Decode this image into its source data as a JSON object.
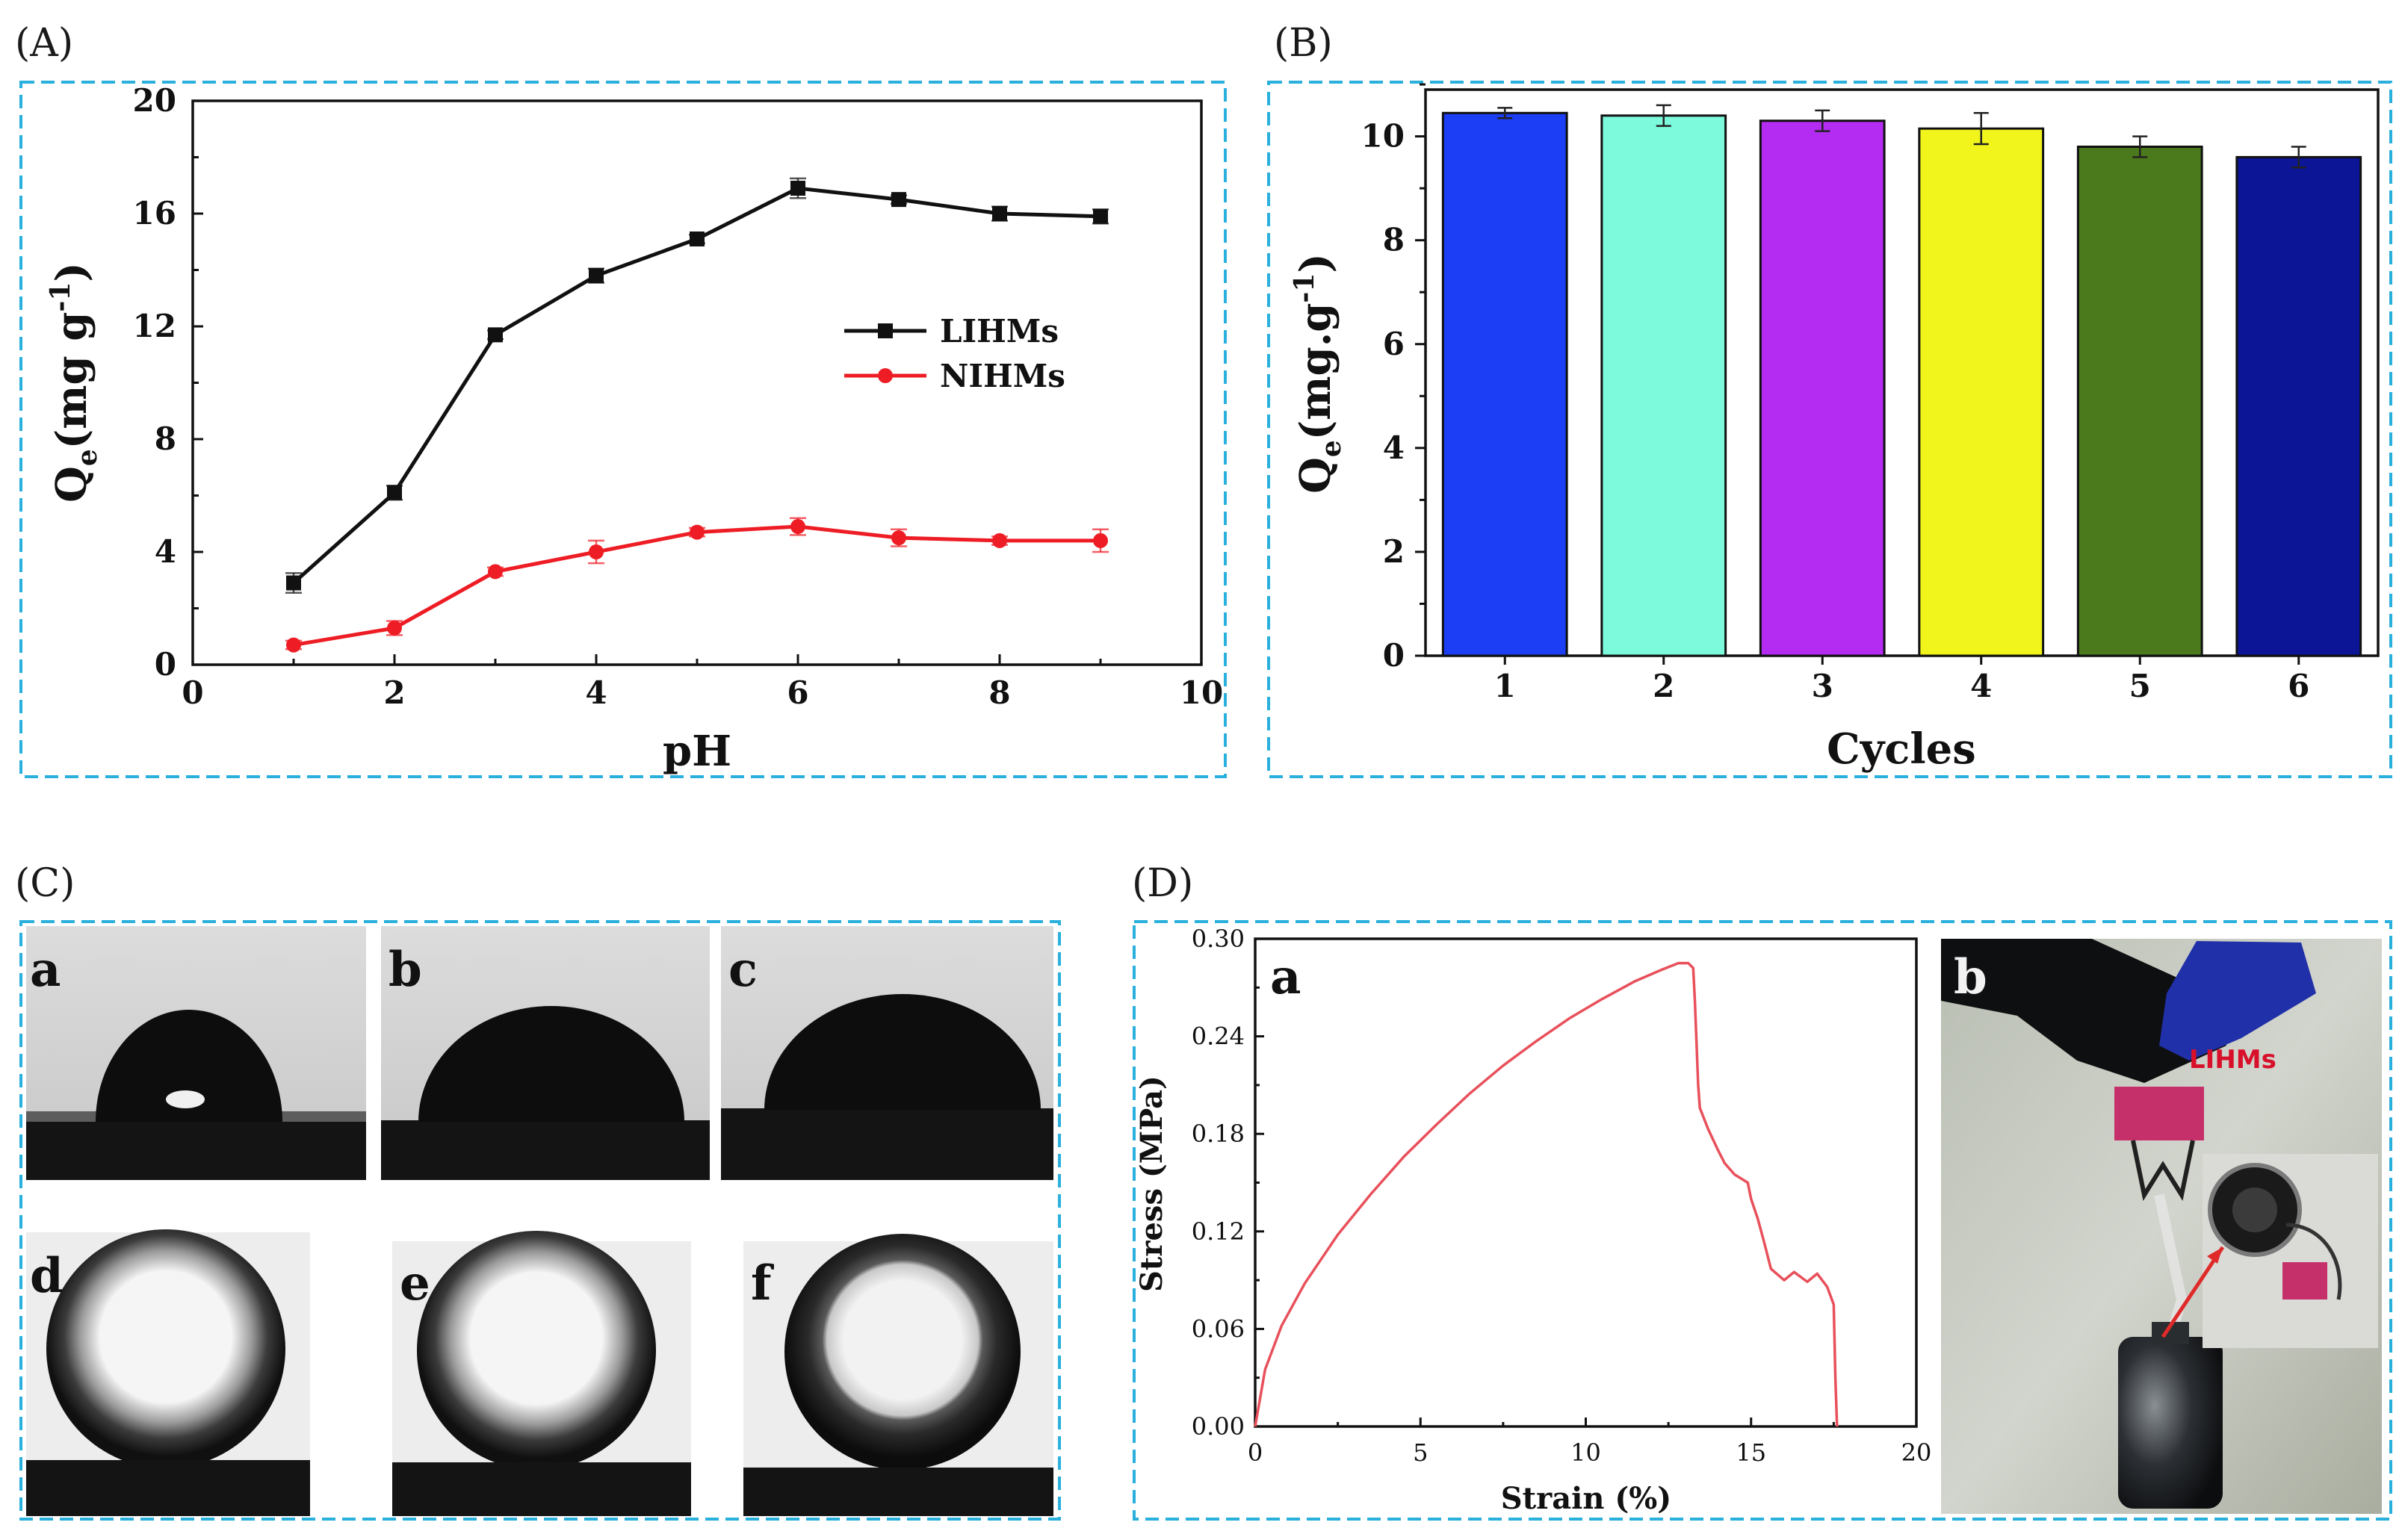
{
  "panels": {
    "A": "(A)",
    "B": "(B)",
    "C": "(C)",
    "D": "(D)"
  },
  "chart_data": [
    {
      "id": "A",
      "type": "line",
      "title": "",
      "xlabel": "pH",
      "ylabel_main": "Q",
      "ylabel_sub": "e",
      "ylabel_unit": "(mg g",
      "ylabel_sup": "-1",
      "ylabel_close": ")",
      "xlim": [
        0,
        10
      ],
      "ylim": [
        0,
        20
      ],
      "xticks": [
        "0",
        "2",
        "4",
        "6",
        "8",
        "10"
      ],
      "yticks": [
        "0",
        "4",
        "8",
        "12",
        "16",
        "20"
      ],
      "x": [
        1,
        2,
        3,
        4,
        5,
        6,
        7,
        8,
        9
      ],
      "series": [
        {
          "name": "LIHMs",
          "color": "#111111",
          "marker": "square",
          "values": [
            2.9,
            6.1,
            11.7,
            13.8,
            15.1,
            16.9,
            16.5,
            16.0,
            15.9
          ],
          "errors": [
            0.35,
            0.25,
            0.15,
            0.25,
            0.15,
            0.35,
            0.15,
            0.25,
            0.25
          ]
        },
        {
          "name": "NIHMs",
          "color": "#ee1c24",
          "marker": "circle",
          "values": [
            0.7,
            1.3,
            3.3,
            4.0,
            4.7,
            4.9,
            4.5,
            4.4,
            4.4
          ],
          "errors": [
            0.15,
            0.25,
            0.15,
            0.4,
            0.15,
            0.3,
            0.3,
            0.15,
            0.4
          ]
        }
      ]
    },
    {
      "id": "B",
      "type": "bar",
      "title": "",
      "xlabel": "Cycles",
      "ylabel_main": "Q",
      "ylabel_sub": "e",
      "ylabel_unit": "(mg.g",
      "ylabel_sup": "-1",
      "ylabel_close": ")",
      "ylim": [
        0,
        10.9
      ],
      "yticks": [
        "0",
        "2",
        "4",
        "6",
        "8",
        "10"
      ],
      "categories": [
        "1",
        "2",
        "3",
        "4",
        "5",
        "6"
      ],
      "values": [
        10.45,
        10.4,
        10.3,
        10.15,
        9.8,
        9.6
      ],
      "errors": [
        0.1,
        0.2,
        0.2,
        0.3,
        0.2,
        0.2
      ],
      "colors": [
        "#1c3ef5",
        "#7dfadc",
        "#b42bf2",
        "#f1f51c",
        "#4a7a1b",
        "#0b1596"
      ]
    },
    {
      "id": "D",
      "type": "line",
      "title": "",
      "xlabel": "Strain (%)",
      "ylabel": "Stress (MPa)",
      "xlim": [
        0,
        20
      ],
      "ylim": [
        0,
        0.3
      ],
      "xticks": [
        "0",
        "5",
        "10",
        "15",
        "20"
      ],
      "yticks": [
        "0.00",
        "0.06",
        "0.12",
        "0.18",
        "0.24",
        "0.30"
      ],
      "series": [
        {
          "name": "LIHMs",
          "color": "#e8505b",
          "x": [
            0,
            0.3,
            0.8,
            1.5,
            2.5,
            3.5,
            4.5,
            5.5,
            6.5,
            7.5,
            8.5,
            9.5,
            10.5,
            11.5,
            12.3,
            12.8,
            13.1,
            13.25,
            13.3,
            13.4,
            13.45,
            13.7,
            14.0,
            14.2,
            14.5,
            14.9,
            15.0,
            15.2,
            15.4,
            15.6,
            16.0,
            16.3,
            16.7,
            17.0,
            17.3,
            17.5,
            17.55,
            17.6
          ],
          "y": [
            0,
            0.035,
            0.062,
            0.088,
            0.118,
            0.143,
            0.166,
            0.186,
            0.205,
            0.222,
            0.237,
            0.251,
            0.263,
            0.274,
            0.281,
            0.285,
            0.285,
            0.282,
            0.262,
            0.21,
            0.196,
            0.183,
            0.17,
            0.162,
            0.155,
            0.15,
            0.14,
            0.128,
            0.113,
            0.097,
            0.09,
            0.095,
            0.089,
            0.094,
            0.086,
            0.075,
            0.03,
            0.0
          ]
        }
      ]
    }
  ],
  "panel_C": {
    "top_labels": [
      "a",
      "b",
      "c"
    ],
    "bottom_labels": [
      "d",
      "e",
      "f"
    ]
  },
  "panel_D": {
    "sub_a": "a",
    "sub_b": "b",
    "photo_tag": "LIHMs",
    "photo_tag_color": "#d8102a"
  }
}
